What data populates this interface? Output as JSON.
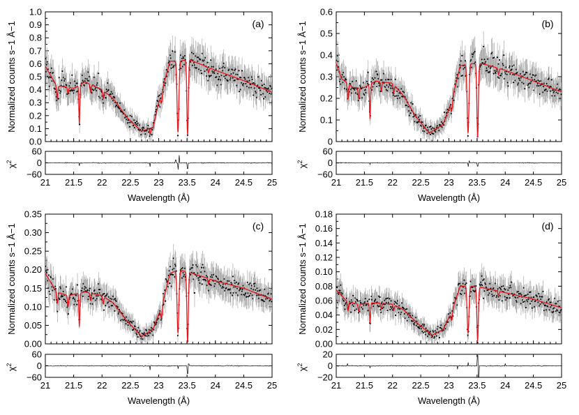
{
  "figure": {
    "shared_xlabel": "Wavelength (Å)",
    "chi2_label": "χ2",
    "colors": {
      "data": "#000000",
      "error_bar": "#9a9a9a",
      "model": "#e8141b",
      "residual": "#000000"
    }
  },
  "chart_data": [
    {
      "type": "line",
      "panel_label": "(a)",
      "xlabel": "Wavelength (Å)",
      "ylabel": "Normalized counts s−1 Å−1",
      "xlim": [
        21,
        25
      ],
      "ylim": [
        0,
        1.0
      ],
      "xticks": [
        "21",
        "21.5",
        "22",
        "22.5",
        "23",
        "23.5",
        "24",
        "24.5",
        "25"
      ],
      "yticks": [
        "0.0",
        "0.1",
        "0.2",
        "0.3",
        "0.4",
        "0.5",
        "0.6",
        "0.7",
        "0.8",
        "0.9",
        "1.0"
      ],
      "grid": false,
      "continuum": [
        [
          21.0,
          0.58
        ],
        [
          21.2,
          0.43
        ],
        [
          21.4,
          0.42
        ],
        [
          21.5,
          0.41
        ],
        [
          21.7,
          0.46
        ],
        [
          22.0,
          0.4
        ],
        [
          22.2,
          0.33
        ],
        [
          22.45,
          0.18
        ],
        [
          22.7,
          0.08
        ],
        [
          22.9,
          0.11
        ],
        [
          23.0,
          0.3
        ],
        [
          23.2,
          0.62
        ],
        [
          23.3,
          0.62
        ],
        [
          23.55,
          0.63
        ],
        [
          24.0,
          0.55
        ],
        [
          24.5,
          0.47
        ],
        [
          25.0,
          0.38
        ]
      ],
      "absorption_lines": [
        {
          "x": 21.21,
          "depth": 0.1,
          "width": 0.015
        },
        {
          "x": 21.4,
          "depth": 0.05,
          "width": 0.015
        },
        {
          "x": 21.6,
          "depth": 0.3,
          "width": 0.012
        },
        {
          "x": 21.8,
          "depth": 0.06,
          "width": 0.015
        },
        {
          "x": 22.02,
          "depth": 0.06,
          "width": 0.015
        },
        {
          "x": 22.85,
          "depth": 0.04,
          "width": 0.015
        },
        {
          "x": 23.05,
          "depth": 0.08,
          "width": 0.02
        },
        {
          "x": 23.34,
          "depth": 0.55,
          "width": 0.022
        },
        {
          "x": 23.51,
          "depth": 0.58,
          "width": 0.018
        },
        {
          "x": 23.88,
          "depth": 0.04,
          "width": 0.015
        }
      ],
      "chi2": {
        "ylim": [
          -60,
          60
        ],
        "ticks": [
          "60",
          "0",
          "−60"
        ],
        "spikes": [
          [
            21.6,
            -15
          ],
          [
            22.85,
            -20
          ],
          [
            23.3,
            15
          ],
          [
            23.34,
            -35
          ],
          [
            23.36,
            40
          ],
          [
            23.51,
            -30
          ]
        ]
      }
    },
    {
      "type": "line",
      "panel_label": "(b)",
      "xlabel": "Wavelength (Å)",
      "ylabel": "Normalized counts s−1 Å−1",
      "xlim": [
        21,
        25
      ],
      "ylim": [
        0,
        0.6
      ],
      "xticks": [
        "21",
        "21.5",
        "22",
        "22.5",
        "23",
        "23.5",
        "24",
        "24.5",
        "25"
      ],
      "yticks": [
        "0",
        "0.1",
        "0.2",
        "0.3",
        "0.4",
        "0.5",
        "0.6"
      ],
      "grid": false,
      "continuum": [
        [
          21.0,
          0.36
        ],
        [
          21.1,
          0.29
        ],
        [
          21.3,
          0.25
        ],
        [
          21.5,
          0.25
        ],
        [
          21.7,
          0.28
        ],
        [
          22.0,
          0.27
        ],
        [
          22.2,
          0.21
        ],
        [
          22.4,
          0.12
        ],
        [
          22.65,
          0.04
        ],
        [
          22.9,
          0.08
        ],
        [
          23.05,
          0.19
        ],
        [
          23.2,
          0.35
        ],
        [
          23.35,
          0.36
        ],
        [
          23.6,
          0.36
        ],
        [
          24.0,
          0.33
        ],
        [
          24.5,
          0.28
        ],
        [
          25.0,
          0.23
        ]
      ],
      "absorption_lines": [
        {
          "x": 21.21,
          "depth": 0.07,
          "width": 0.015
        },
        {
          "x": 21.4,
          "depth": 0.05,
          "width": 0.015
        },
        {
          "x": 21.6,
          "depth": 0.16,
          "width": 0.012
        },
        {
          "x": 21.8,
          "depth": 0.04,
          "width": 0.015
        },
        {
          "x": 22.02,
          "depth": 0.04,
          "width": 0.015
        },
        {
          "x": 23.05,
          "depth": 0.05,
          "width": 0.02
        },
        {
          "x": 23.34,
          "depth": 0.32,
          "width": 0.022
        },
        {
          "x": 23.51,
          "depth": 0.34,
          "width": 0.018
        },
        {
          "x": 23.88,
          "depth": 0.03,
          "width": 0.015
        }
      ],
      "chi2": {
        "ylim": [
          -60,
          60
        ],
        "ticks": [
          "60",
          "0",
          "−60"
        ],
        "spikes": [
          [
            21.6,
            -8
          ],
          [
            23.34,
            -20
          ],
          [
            23.36,
            12
          ],
          [
            23.51,
            -18
          ]
        ]
      }
    },
    {
      "type": "line",
      "panel_label": "(c)",
      "xlabel": "Wavelength (Å)",
      "ylabel": "Normalized counts s−1 Å−1",
      "xlim": [
        21,
        25
      ],
      "ylim": [
        0,
        0.35
      ],
      "xticks": [
        "21",
        "21.5",
        "22",
        "22.5",
        "23",
        "23.5",
        "24",
        "24.5",
        "25"
      ],
      "yticks": [
        "0.00",
        "0.05",
        "0.10",
        "0.15",
        "0.20",
        "0.25",
        "0.30",
        "0.35"
      ],
      "grid": false,
      "continuum": [
        [
          21.0,
          0.19
        ],
        [
          21.2,
          0.14
        ],
        [
          21.4,
          0.13
        ],
        [
          21.7,
          0.14
        ],
        [
          22.0,
          0.13
        ],
        [
          22.2,
          0.11
        ],
        [
          22.45,
          0.06
        ],
        [
          22.7,
          0.02
        ],
        [
          22.9,
          0.04
        ],
        [
          23.05,
          0.1
        ],
        [
          23.2,
          0.19
        ],
        [
          23.35,
          0.2
        ],
        [
          23.6,
          0.19
        ],
        [
          24.0,
          0.17
        ],
        [
          24.5,
          0.15
        ],
        [
          25.0,
          0.12
        ]
      ],
      "absorption_lines": [
        {
          "x": 21.21,
          "depth": 0.03,
          "width": 0.015
        },
        {
          "x": 21.4,
          "depth": 0.03,
          "width": 0.015
        },
        {
          "x": 21.6,
          "depth": 0.09,
          "width": 0.012
        },
        {
          "x": 21.8,
          "depth": 0.02,
          "width": 0.015
        },
        {
          "x": 22.02,
          "depth": 0.02,
          "width": 0.015
        },
        {
          "x": 23.05,
          "depth": 0.03,
          "width": 0.02
        },
        {
          "x": 23.34,
          "depth": 0.17,
          "width": 0.022
        },
        {
          "x": 23.51,
          "depth": 0.19,
          "width": 0.018
        },
        {
          "x": 23.88,
          "depth": 0.015,
          "width": 0.015
        }
      ],
      "chi2": {
        "ylim": [
          -60,
          60
        ],
        "ticks": [
          "60",
          "0",
          "−60"
        ],
        "spikes": [
          [
            22.85,
            -22
          ],
          [
            23.34,
            -15
          ],
          [
            23.51,
            -40
          ],
          [
            23.53,
            10
          ]
        ]
      }
    },
    {
      "type": "line",
      "panel_label": "(d)",
      "xlabel": "Wavelength (Å)",
      "ylabel": "Normalized counts s−1 Å−1",
      "xlim": [
        21,
        25
      ],
      "ylim": [
        0,
        0.18
      ],
      "xticks": [
        "21",
        "21.5",
        "22",
        "22.5",
        "23",
        "23.5",
        "24",
        "24.5",
        "25"
      ],
      "yticks": [
        "0.00",
        "0.02",
        "0.04",
        "0.06",
        "0.08",
        "0.10",
        "0.12",
        "0.14",
        "0.16",
        "0.18"
      ],
      "grid": false,
      "continuum": [
        [
          21.0,
          0.075
        ],
        [
          21.2,
          0.058
        ],
        [
          21.4,
          0.055
        ],
        [
          21.7,
          0.057
        ],
        [
          22.0,
          0.055
        ],
        [
          22.2,
          0.047
        ],
        [
          22.45,
          0.028
        ],
        [
          22.7,
          0.012
        ],
        [
          22.9,
          0.02
        ],
        [
          23.05,
          0.045
        ],
        [
          23.2,
          0.08
        ],
        [
          23.35,
          0.08
        ],
        [
          23.6,
          0.078
        ],
        [
          24.0,
          0.071
        ],
        [
          24.5,
          0.062
        ],
        [
          25.0,
          0.05
        ]
      ],
      "absorption_lines": [
        {
          "x": 21.21,
          "depth": 0.012,
          "width": 0.015
        },
        {
          "x": 21.4,
          "depth": 0.01,
          "width": 0.015
        },
        {
          "x": 21.6,
          "depth": 0.028,
          "width": 0.012
        },
        {
          "x": 21.8,
          "depth": 0.008,
          "width": 0.015
        },
        {
          "x": 22.02,
          "depth": 0.008,
          "width": 0.015
        },
        {
          "x": 23.05,
          "depth": 0.012,
          "width": 0.02
        },
        {
          "x": 23.34,
          "depth": 0.065,
          "width": 0.022
        },
        {
          "x": 23.51,
          "depth": 0.075,
          "width": 0.018
        },
        {
          "x": 23.88,
          "depth": 0.006,
          "width": 0.015
        }
      ],
      "chi2": {
        "ylim": [
          -20,
          20
        ],
        "ticks": [
          "20",
          "0",
          "−20"
        ],
        "spikes": [
          [
            21.2,
            4
          ],
          [
            21.6,
            -4
          ],
          [
            23.15,
            -6
          ],
          [
            23.34,
            6
          ],
          [
            23.51,
            18
          ],
          [
            23.53,
            -20
          ],
          [
            24.0,
            4
          ]
        ]
      }
    }
  ]
}
